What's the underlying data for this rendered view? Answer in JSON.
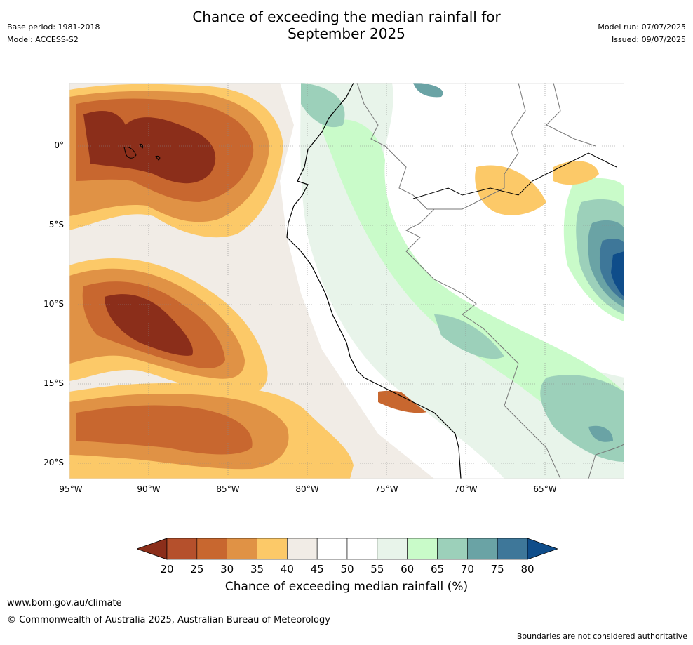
{
  "header": {
    "title_line1": "Chance of exceeding the median rainfall for",
    "title_line2": "September 2025",
    "base_period": "Base period: 1981-2018",
    "model": "Model: ACCESS-S2",
    "model_run": "Model run: 07/07/2025",
    "issued": "Issued: 09/07/2025"
  },
  "map": {
    "lat_ticks": [
      "0°",
      "5°S",
      "10°S",
      "15°S",
      "20°S"
    ],
    "lon_ticks": [
      "95°W",
      "90°W",
      "85°W",
      "80°W",
      "75°W",
      "70°W",
      "65°W"
    ]
  },
  "colorbar": {
    "labels": [
      "20",
      "25",
      "30",
      "35",
      "40",
      "45",
      "50",
      "55",
      "60",
      "65",
      "70",
      "75",
      "80"
    ],
    "colors": [
      "#8b2e1a",
      "#b5502c",
      "#c8672f",
      "#e09245",
      "#fcc968",
      "#f1ece6",
      "#ffffff",
      "#ffffff",
      "#e8f4ea",
      "#c9fbc9",
      "#9cd0ba",
      "#6aa3a5",
      "#3e7799",
      "#0f4d8a"
    ],
    "title": "Chance of exceeding median rainfall (%)"
  },
  "footer": {
    "url": "www.bom.gov.au/climate",
    "copyright": "© Commonwealth of Australia 2025, Australian Bureau of Meteorology",
    "note": "Boundaries are not considered authoritative"
  }
}
